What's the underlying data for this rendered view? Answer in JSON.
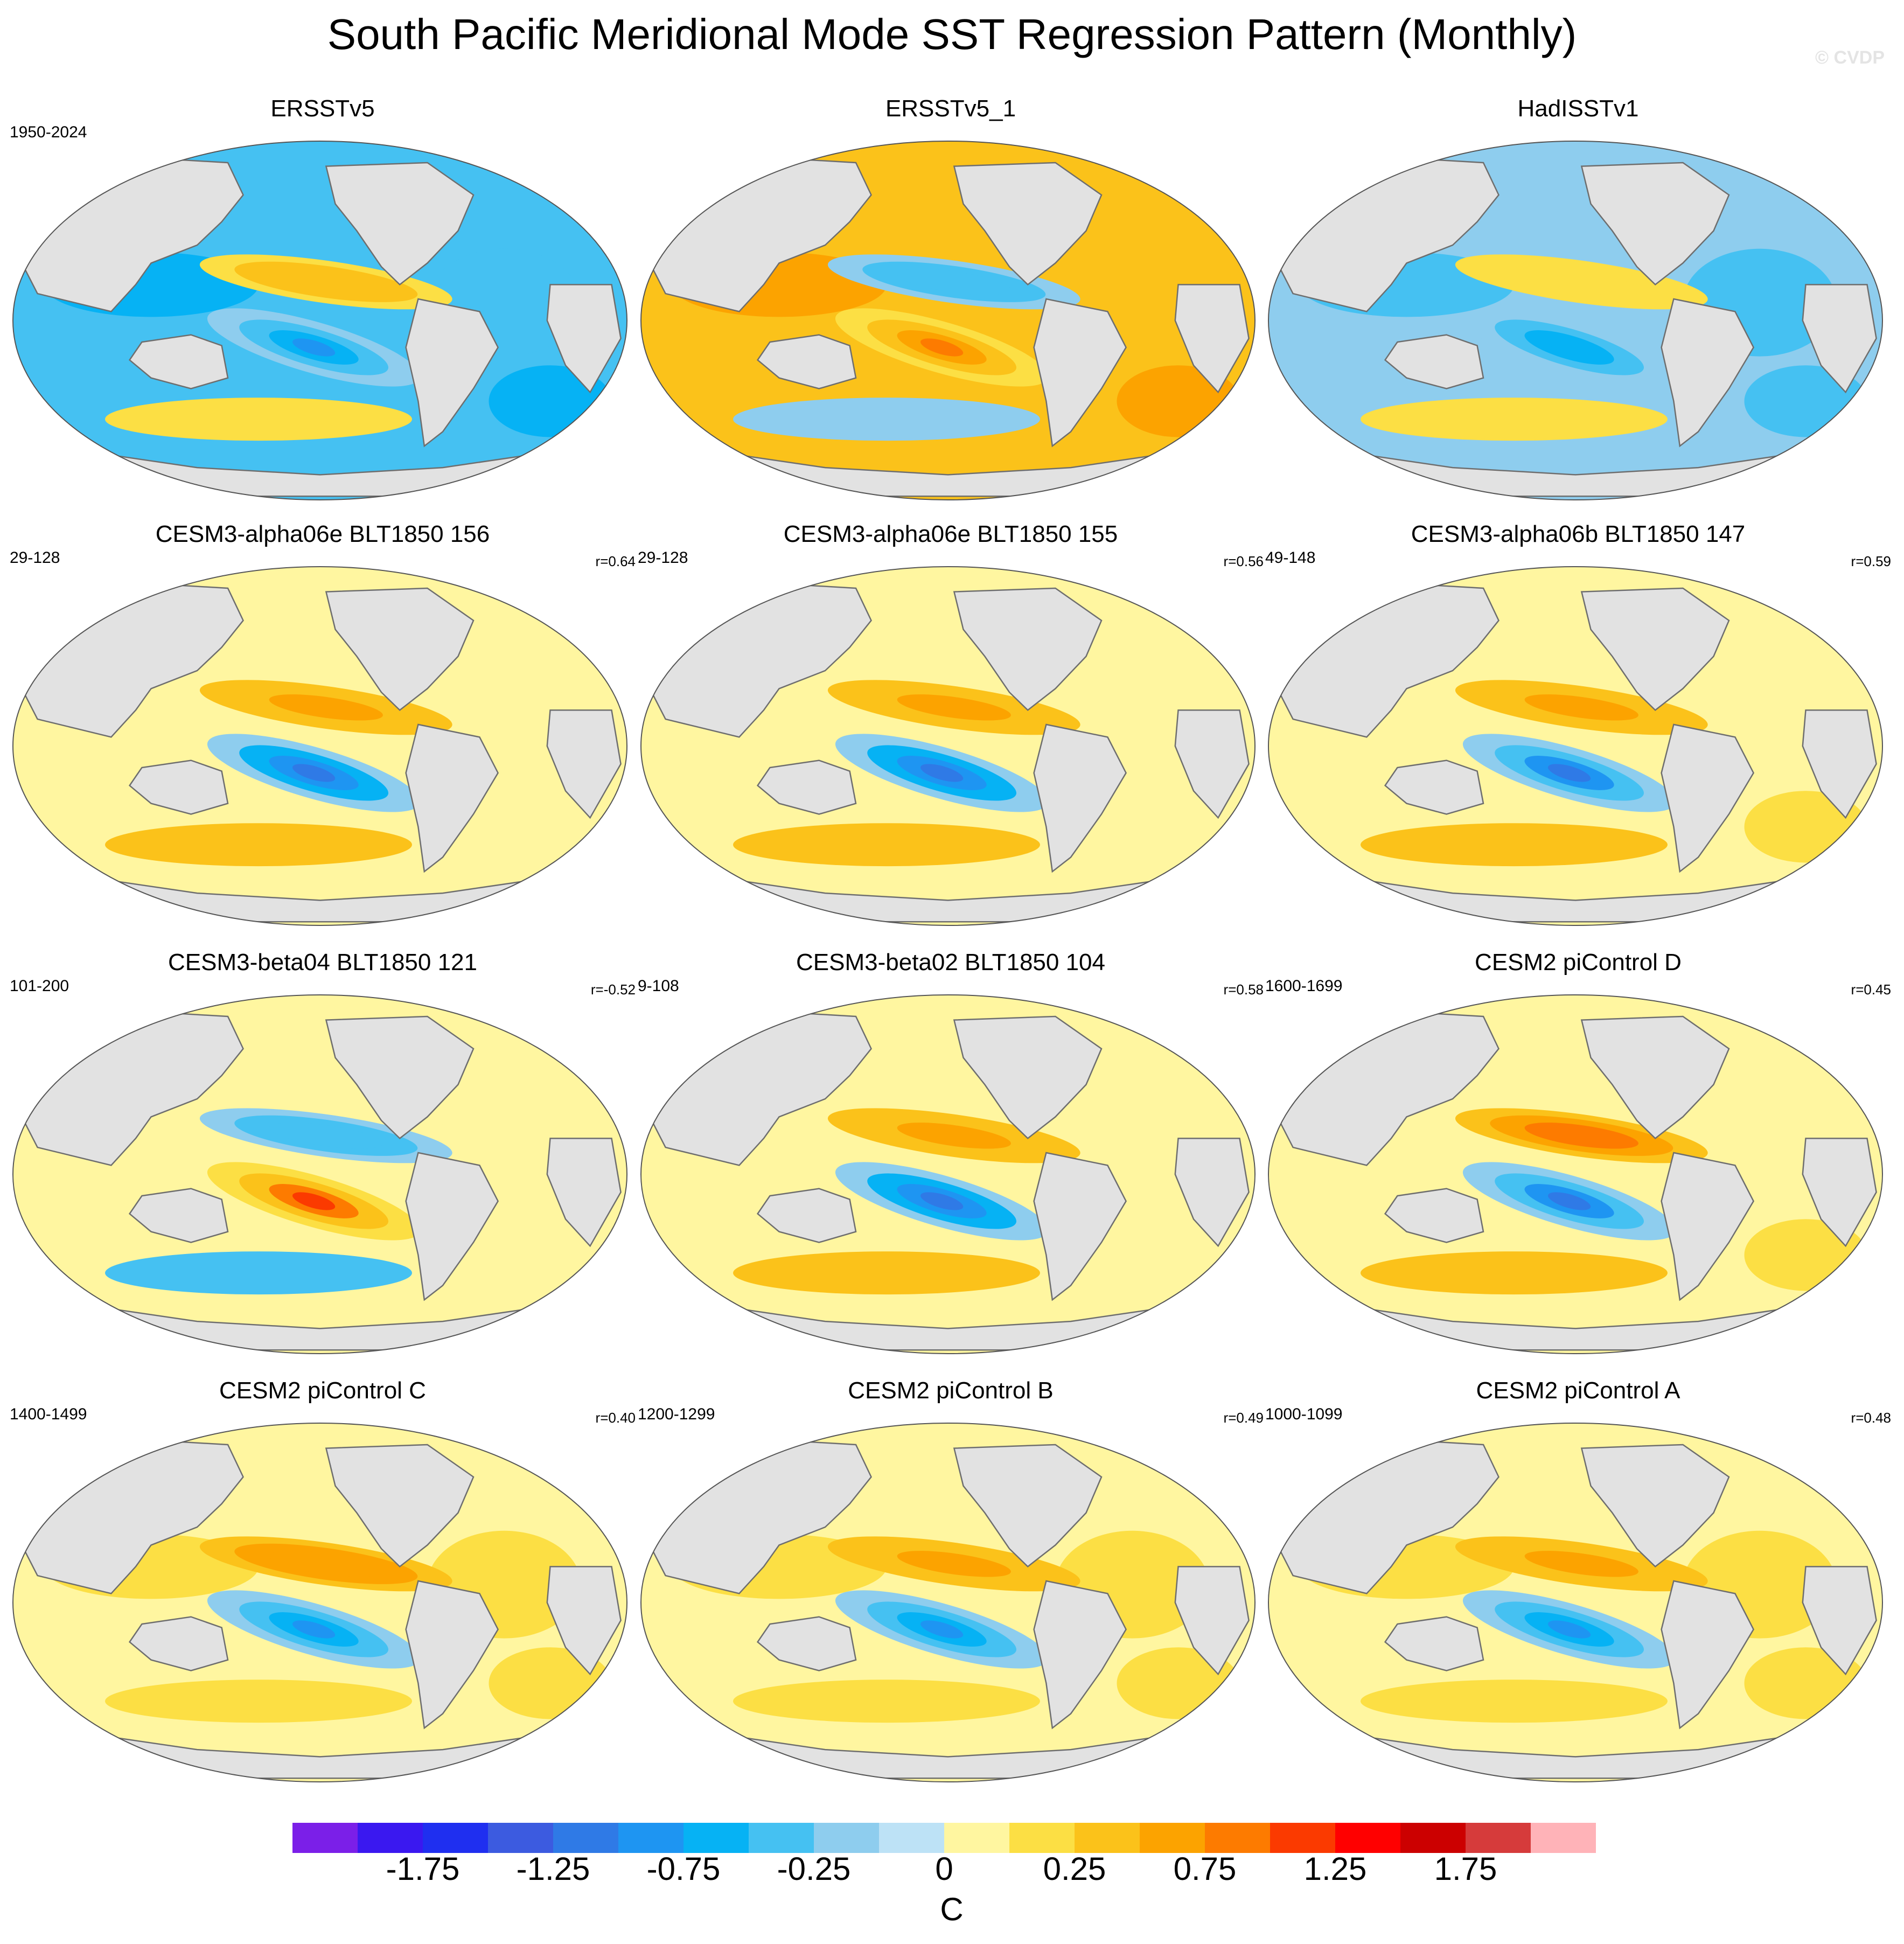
{
  "title": "South Pacific Meridional Mode SST Regression Pattern (Monthly)",
  "watermark": "© CVDP",
  "colors": {
    "land": "#e2e2e2",
    "coast": "#6e6e6e",
    "levels": [
      "#7b1fe8",
      "#3a18f0",
      "#1f2ff0",
      "#3c5be0",
      "#2f7ae6",
      "#1e95f2",
      "#06b2f4",
      "#45c1f2",
      "#8ecdee",
      "#bde2f6",
      "#fff6a0",
      "#fcdf44",
      "#fbc21a",
      "#fca300",
      "#fd7b00",
      "#fb3a00",
      "#ff0000",
      "#cc0000",
      "#d63b3b",
      "#ffb3b8"
    ]
  },
  "chart_data": {
    "type": "map",
    "variable": "SST regression",
    "colorbar": {
      "unit": "C",
      "tick_labels": [
        "-1.75",
        "-1.25",
        "-0.75",
        "-0.25",
        "0",
        "0.25",
        "0.75",
        "1.25",
        "1.75"
      ],
      "levels": [
        -2.0,
        -1.75,
        -1.5,
        -1.25,
        -1.0,
        -0.75,
        -0.5,
        -0.25,
        -0.1,
        0,
        0.1,
        0.25,
        0.5,
        0.75,
        1.0,
        1.25,
        1.5,
        1.75,
        2.0
      ]
    },
    "panels": [
      {
        "name": "ERSSTv5",
        "years": "1950-2024",
        "r": "",
        "tone": -0.3,
        "spmm": -0.6,
        "eq": 0.2
      },
      {
        "name": "ERSSTv5_1",
        "years": "",
        "r": "",
        "tone": 0.3,
        "spmm": 0.6,
        "eq": -0.2
      },
      {
        "name": "HadISSTv1",
        "years": "",
        "r": "",
        "tone": -0.2,
        "spmm": -0.5,
        "eq": 0.1
      },
      {
        "name": "CESM3-alpha06e BLT1850 156",
        "years": "29-128",
        "r": "r=0.64",
        "tone": 0.02,
        "spmm": -0.8,
        "eq": 0.35
      },
      {
        "name": "CESM3-alpha06e BLT1850 155",
        "years": "29-128",
        "r": "r=0.56",
        "tone": 0.02,
        "spmm": -0.8,
        "eq": 0.3
      },
      {
        "name": "CESM3-alpha06b BLT1850 147",
        "years": "49-148",
        "r": "r=0.59",
        "tone": 0.05,
        "spmm": -0.7,
        "eq": 0.3
      },
      {
        "name": "CESM3-beta04 BLT1850 121",
        "years": "101-200",
        "r": "r=-0.52",
        "tone": 0.02,
        "spmm": 0.7,
        "eq": -0.25
      },
      {
        "name": "CESM3-beta02 BLT1850 104",
        "years": "9-108",
        "r": "r=0.58",
        "tone": 0.02,
        "spmm": -0.8,
        "eq": 0.3
      },
      {
        "name": "CESM2 piControl D",
        "years": "1600-1699",
        "r": "r=0.45",
        "tone": 0.05,
        "spmm": -0.7,
        "eq": 0.45
      },
      {
        "name": "CESM2 piControl C",
        "years": "1400-1499",
        "r": "r=0.40",
        "tone": 0.08,
        "spmm": -0.6,
        "eq": 0.4
      },
      {
        "name": "CESM2 piControl B",
        "years": "1200-1299",
        "r": "r=0.49",
        "tone": 0.08,
        "spmm": -0.6,
        "eq": 0.35
      },
      {
        "name": "CESM2 piControl A",
        "years": "1000-1099",
        "r": "r=0.48",
        "tone": 0.08,
        "spmm": -0.55,
        "eq": 0.35
      }
    ]
  }
}
